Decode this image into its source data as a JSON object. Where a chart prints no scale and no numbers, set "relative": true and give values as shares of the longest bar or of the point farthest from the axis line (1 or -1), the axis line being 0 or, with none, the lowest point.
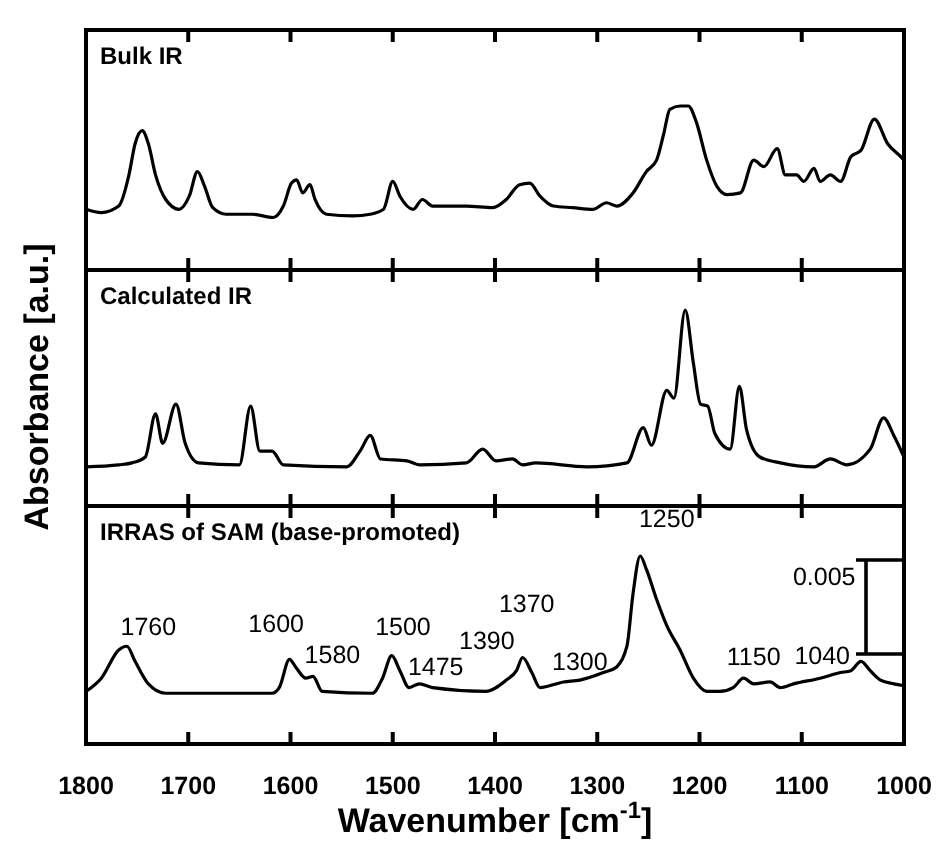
{
  "chart_data": [
    {
      "type": "line",
      "title": "Bulk IR",
      "relative": true,
      "xlim": [
        1800,
        1000
      ],
      "xticks": [
        1800,
        1700,
        1600,
        1500,
        1400,
        1300,
        1200,
        1100,
        1000
      ],
      "tick_labels": false,
      "x": [
        1800,
        1785,
        1768,
        1758,
        1752,
        1745,
        1739,
        1732,
        1722,
        1709,
        1699,
        1691,
        1684,
        1676,
        1663,
        1637,
        1617,
        1607,
        1599,
        1594,
        1588,
        1581,
        1576,
        1565,
        1539,
        1522,
        1509,
        1500,
        1493,
        1480,
        1471,
        1461,
        1428,
        1402,
        1389,
        1376,
        1366,
        1356,
        1343,
        1324,
        1304,
        1291,
        1281,
        1265,
        1252,
        1242,
        1235,
        1229,
        1219,
        1211,
        1203,
        1193,
        1183,
        1173,
        1160,
        1147,
        1137,
        1124,
        1116,
        1105,
        1098,
        1088,
        1082,
        1072,
        1062,
        1052,
        1042,
        1029,
        1016,
        1003,
        1000
      ],
      "series": [
        {
          "color": "#000000",
          "values": [
            0.37,
            0.35,
            0.39,
            0.58,
            0.77,
            0.85,
            0.77,
            0.58,
            0.43,
            0.37,
            0.45,
            0.6,
            0.51,
            0.38,
            0.34,
            0.34,
            0.32,
            0.39,
            0.53,
            0.55,
            0.47,
            0.52,
            0.43,
            0.34,
            0.33,
            0.34,
            0.37,
            0.54,
            0.45,
            0.37,
            0.43,
            0.39,
            0.39,
            0.38,
            0.43,
            0.52,
            0.53,
            0.45,
            0.39,
            0.38,
            0.37,
            0.41,
            0.39,
            0.47,
            0.6,
            0.67,
            0.83,
            0.98,
            1,
            1,
            0.9,
            0.67,
            0.51,
            0.46,
            0.47,
            0.67,
            0.63,
            0.74,
            0.58,
            0.58,
            0.54,
            0.62,
            0.54,
            0.58,
            0.54,
            0.69,
            0.73,
            0.92,
            0.77,
            0.69,
            0.67
          ]
        }
      ]
    },
    {
      "type": "line",
      "title": "Calculated IR",
      "ylabel": "Absorbance [a.u.]",
      "relative": true,
      "xlim": [
        1800,
        1000
      ],
      "xticks": [
        1800,
        1700,
        1600,
        1500,
        1400,
        1300,
        1200,
        1100,
        1000
      ],
      "tick_labels": false,
      "x": [
        1800,
        1768,
        1755,
        1742,
        1732,
        1725,
        1712,
        1703,
        1690,
        1650,
        1639,
        1630,
        1618,
        1607,
        1545,
        1532,
        1522,
        1512,
        1486,
        1474,
        1428,
        1412,
        1399,
        1383,
        1373,
        1360,
        1310,
        1271,
        1255,
        1247,
        1232,
        1225,
        1214,
        1206,
        1199,
        1192,
        1185,
        1170,
        1161,
        1154,
        1141,
        1121,
        1088,
        1072,
        1056,
        1033,
        1020,
        1010,
        1000
      ],
      "series": [
        {
          "color": "#000000",
          "values": [
            0.2,
            0.21,
            0.22,
            0.25,
            0.47,
            0.32,
            0.52,
            0.32,
            0.22,
            0.21,
            0.51,
            0.28,
            0.28,
            0.21,
            0.2,
            0.28,
            0.36,
            0.24,
            0.23,
            0.21,
            0.22,
            0.29,
            0.23,
            0.24,
            0.21,
            0.22,
            0.2,
            0.22,
            0.4,
            0.31,
            0.59,
            0.55,
            1,
            0.73,
            0.52,
            0.51,
            0.37,
            0.29,
            0.61,
            0.39,
            0.25,
            0.22,
            0.2,
            0.24,
            0.21,
            0.29,
            0.45,
            0.36,
            0.25
          ]
        }
      ]
    },
    {
      "type": "line",
      "title": "IRRAS of SAM (base-promoted)",
      "xlabel": "Wavenumber [cm$^{-1}$]",
      "relative": true,
      "xlim": [
        1800,
        1000
      ],
      "xticks": [
        1800,
        1700,
        1600,
        1500,
        1400,
        1300,
        1200,
        1100,
        1000
      ],
      "tick_labels": "x",
      "x": [
        1800,
        1785,
        1768,
        1760,
        1752,
        1739,
        1722,
        1670,
        1618,
        1611,
        1601,
        1595,
        1585,
        1578,
        1569,
        1520,
        1510,
        1501,
        1493,
        1484,
        1474,
        1461,
        1409,
        1389,
        1379,
        1373,
        1364,
        1356,
        1333,
        1317,
        1294,
        1281,
        1271,
        1265,
        1258,
        1252,
        1242,
        1232,
        1219,
        1206,
        1193,
        1180,
        1167,
        1157,
        1147,
        1131,
        1121,
        1108,
        1082,
        1062,
        1052,
        1042,
        1033,
        1023,
        1010,
        1000
      ],
      "series": [
        {
          "color": "#000000",
          "values": [
            0.28,
            0.35,
            0.5,
            0.52,
            0.44,
            0.32,
            0.27,
            0.27,
            0.27,
            0.3,
            0.45,
            0.41,
            0.35,
            0.36,
            0.28,
            0.27,
            0.35,
            0.47,
            0.39,
            0.3,
            0.32,
            0.3,
            0.28,
            0.34,
            0.39,
            0.46,
            0.38,
            0.3,
            0.33,
            0.34,
            0.38,
            0.41,
            0.52,
            0.8,
            1,
            0.93,
            0.77,
            0.63,
            0.5,
            0.35,
            0.28,
            0.28,
            0.3,
            0.35,
            0.32,
            0.33,
            0.3,
            0.32,
            0.35,
            0.38,
            0.39,
            0.44,
            0.39,
            0.34,
            0.32,
            0.31
          ]
        }
      ],
      "annotations": [
        "1760",
        "1600",
        "1580",
        "1500",
        "1475",
        "1390",
        "1370",
        "1300",
        "1250",
        "1150",
        "1040",
        "0.005"
      ]
    }
  ]
}
